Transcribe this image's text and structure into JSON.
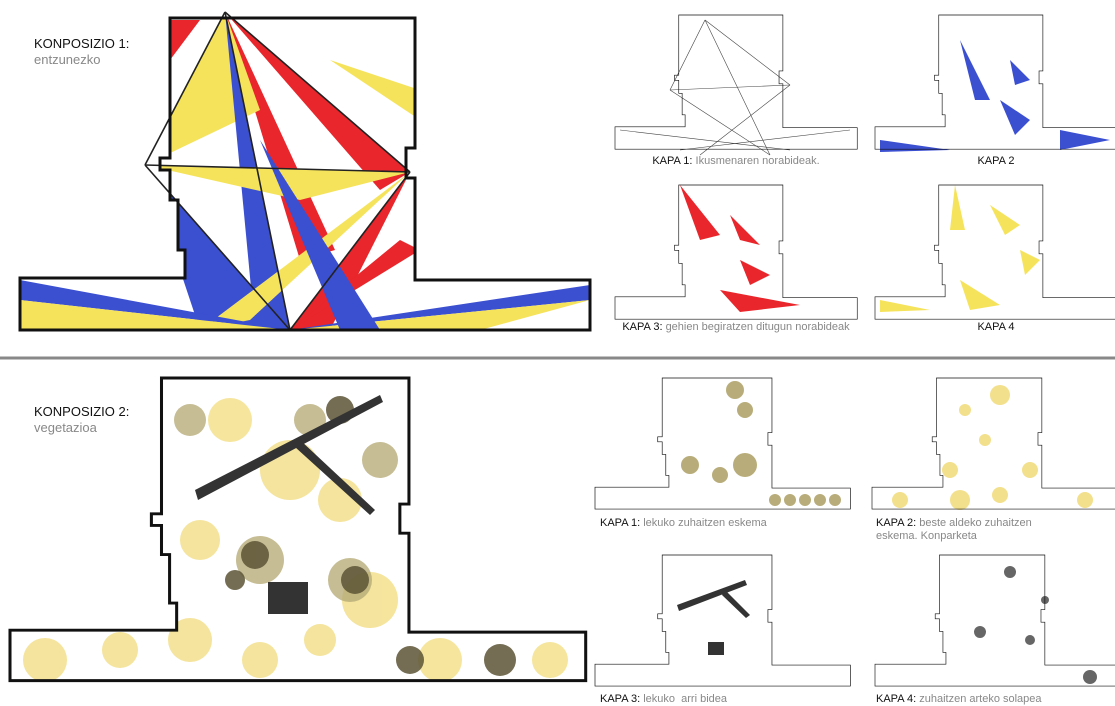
{
  "compositions": [
    {
      "title": "KONPOSIZIO 1:",
      "subtitle": "entzunezko",
      "layers": [
        {
          "label": "KAPA 1:",
          "caption": "Ikusmenaren norabideak."
        },
        {
          "label": "KAPA 2"
        },
        {
          "label": "KAPA 3:",
          "caption": "gehien begiratzen ditugun norabideak"
        },
        {
          "label": "KAPA 4"
        }
      ]
    },
    {
      "title": "KONPOSIZIO 2:",
      "subtitle": "vegetazioa",
      "layers": [
        {
          "label": "KAPA 1:",
          "caption": "lekuko zuhaitzen eskema"
        },
        {
          "label": "KAPA 2:",
          "caption": "beste aldeko zuhaitzen eskema. Konparketa"
        },
        {
          "label": "KAPA 3:",
          "caption": "lekuko  arri bidea"
        },
        {
          "label": "KAPA 4:",
          "caption": "zuhaitzen arteko solapea"
        }
      ]
    }
  ]
}
